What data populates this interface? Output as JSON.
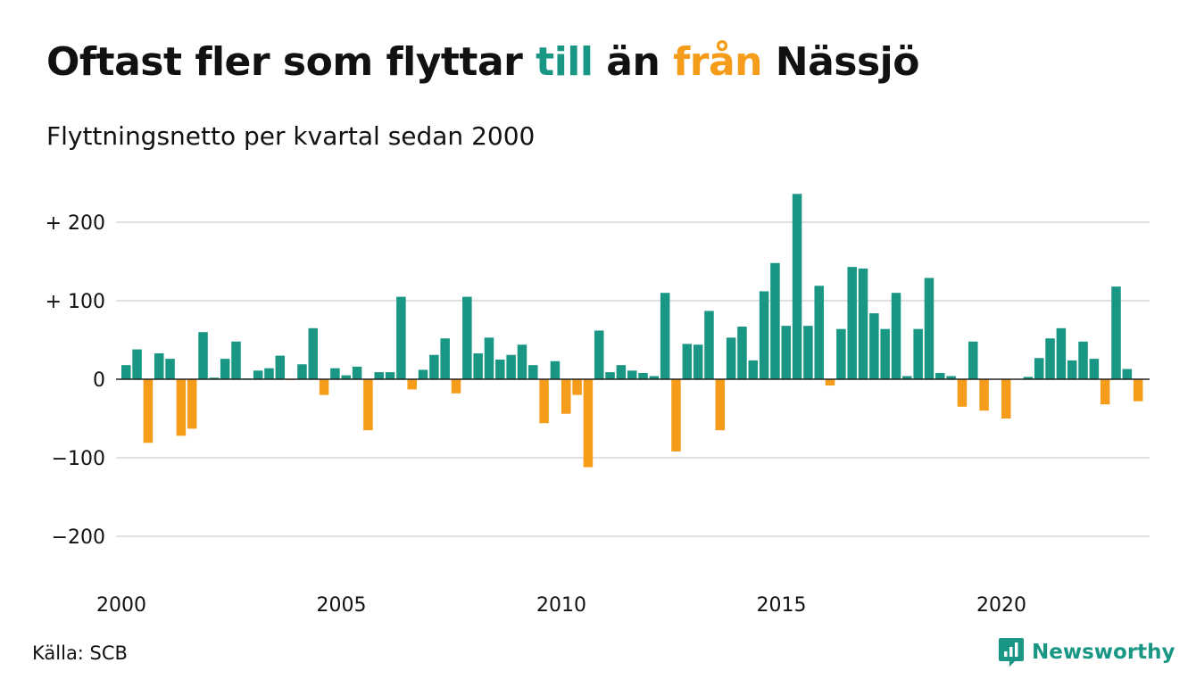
{
  "title": {
    "part1": "Oftast fler som flyttar ",
    "part2": "till",
    "part3": " än ",
    "part4": "från",
    "part5": " Nässjö"
  },
  "subtitle": "Flyttningsnetto per kvartal sedan 2000",
  "source": "Källa: SCB",
  "brand": {
    "name": "Newsworthy",
    "icon": "newsworthy-logo-icon"
  },
  "colors": {
    "positive": "#1a9784",
    "negative": "#f59d1a",
    "text": "#111111",
    "grid": "#e0e0e0",
    "zero_line": "#222222"
  },
  "chart_data": {
    "type": "bar",
    "start_year": 2000,
    "periods_per_year": 4,
    "values": [
      18,
      38,
      -81,
      33,
      26,
      -72,
      -63,
      60,
      2,
      26,
      48,
      1,
      11,
      14,
      30,
      -1,
      19,
      65,
      -20,
      14,
      5,
      16,
      -65,
      9,
      9,
      105,
      -13,
      12,
      31,
      52,
      -18,
      105,
      33,
      53,
      25,
      31,
      44,
      18,
      -56,
      23,
      -44,
      -20,
      -112,
      62,
      9,
      18,
      11,
      8,
      4,
      110,
      -92,
      45,
      44,
      87,
      -65,
      53,
      67,
      24,
      112,
      148,
      68,
      236,
      68,
      119,
      -8,
      64,
      143,
      141,
      84,
      64,
      110,
      4,
      64,
      129,
      8,
      4,
      -35,
      48,
      -40,
      0,
      -50,
      0,
      3,
      27,
      52,
      65,
      24,
      48,
      26,
      -32,
      118,
      13,
      -28
    ],
    "x_ticks": [
      {
        "value": 2000,
        "label": "2000"
      },
      {
        "value": 2005,
        "label": "2005"
      },
      {
        "value": 2010,
        "label": "2010"
      },
      {
        "value": 2015,
        "label": "2015"
      },
      {
        "value": 2020,
        "label": "2020"
      }
    ],
    "y_ticks": [
      {
        "value": 200,
        "label": "+ 200"
      },
      {
        "value": 100,
        "label": "+ 100"
      },
      {
        "value": 0,
        "label": "0"
      },
      {
        "value": -100,
        "label": "−100"
      },
      {
        "value": -200,
        "label": "−200"
      }
    ],
    "ylim": [
      -255,
      255
    ],
    "grid": true,
    "xlabel": "",
    "ylabel": ""
  }
}
